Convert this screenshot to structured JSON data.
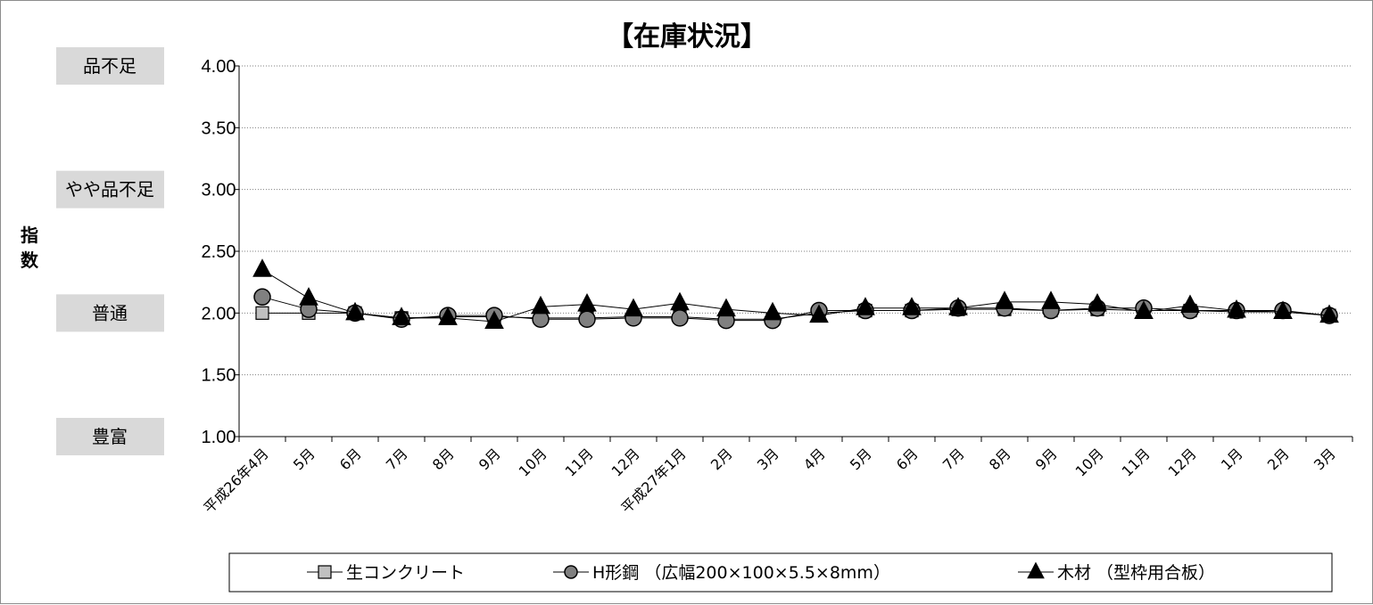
{
  "chart_data": {
    "type": "line",
    "title": "【在庫状況】",
    "ylabel": "指数",
    "xlabel": "",
    "ylim": [
      1.0,
      4.0
    ],
    "yticks": [
      "1.00",
      "1.50",
      "2.00",
      "2.50",
      "3.00",
      "3.50",
      "4.00"
    ],
    "grid": true,
    "legend_position": "bottom",
    "categories": [
      "平成26年4月",
      "5月",
      "6月",
      "7月",
      "8月",
      "9月",
      "10月",
      "11月",
      "12月",
      "平成27年1月",
      "2月",
      "3月",
      "4月",
      "5月",
      "6月",
      "7月",
      "8月",
      "9月",
      "10月",
      "11月",
      "12月",
      "1月",
      "2月",
      "3月"
    ],
    "band_labels": [
      {
        "label": "品不足",
        "value": 4.0
      },
      {
        "label": "やや品不足",
        "value": 3.0
      },
      {
        "label": "普通",
        "value": 2.0
      },
      {
        "label": "豊富",
        "value": 1.0
      }
    ],
    "series": [
      {
        "name": "生コンクリート",
        "marker": "square",
        "color": "#c0c0c0",
        "values": [
          2.0,
          2.0,
          2.0,
          1.96,
          1.97,
          1.97,
          1.96,
          1.96,
          1.97,
          1.97,
          1.95,
          1.95,
          2.0,
          2.02,
          2.02,
          2.03,
          2.03,
          2.02,
          2.03,
          2.02,
          2.02,
          2.01,
          2.01,
          1.98
        ]
      },
      {
        "name": "H形鋼 （広幅200×100×5.5×8mm）",
        "marker": "circle",
        "color": "#808080",
        "values": [
          2.13,
          2.03,
          2.0,
          1.95,
          1.98,
          1.98,
          1.95,
          1.95,
          1.96,
          1.96,
          1.94,
          1.94,
          2.02,
          2.02,
          2.02,
          2.04,
          2.04,
          2.02,
          2.04,
          2.04,
          2.02,
          2.02,
          2.02,
          1.98
        ]
      },
      {
        "name": "木材 （型枠用合板）",
        "marker": "triangle",
        "color": "#000000",
        "values": [
          2.35,
          2.12,
          2.0,
          1.96,
          1.96,
          1.93,
          2.05,
          2.07,
          2.03,
          2.08,
          2.03,
          2.0,
          1.98,
          2.04,
          2.04,
          2.04,
          2.09,
          2.09,
          2.07,
          2.01,
          2.06,
          2.02,
          2.01,
          1.98
        ]
      }
    ]
  }
}
